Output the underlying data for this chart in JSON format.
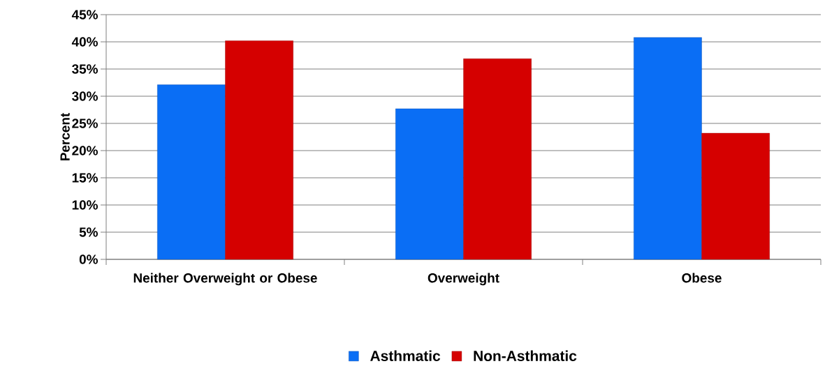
{
  "chart_data": {
    "type": "bar",
    "ylabel": "Percent",
    "categories": [
      "Neither Overweight or Obese",
      "Overweight",
      "Obese"
    ],
    "series": [
      {
        "name": "Asthmatic",
        "color": "#0a6ef5",
        "values": [
          32.1,
          27.7,
          40.8
        ]
      },
      {
        "name": "Non-Asthmatic",
        "color": "#d50000",
        "values": [
          40.2,
          36.9,
          23.2
        ]
      }
    ],
    "ylim": [
      0,
      45
    ],
    "yticks": [
      {
        "value": 0,
        "label": "0%"
      },
      {
        "value": 5,
        "label": "5%"
      },
      {
        "value": 10,
        "label": "10%"
      },
      {
        "value": 15,
        "label": "15%"
      },
      {
        "value": 20,
        "label": "20%"
      },
      {
        "value": 25,
        "label": "25%"
      },
      {
        "value": 30,
        "label": "30%"
      },
      {
        "value": 35,
        "label": "35%"
      },
      {
        "value": 40,
        "label": "40%"
      },
      {
        "value": 45,
        "label": "45%"
      }
    ],
    "grid": "y",
    "legend": "bottom"
  }
}
